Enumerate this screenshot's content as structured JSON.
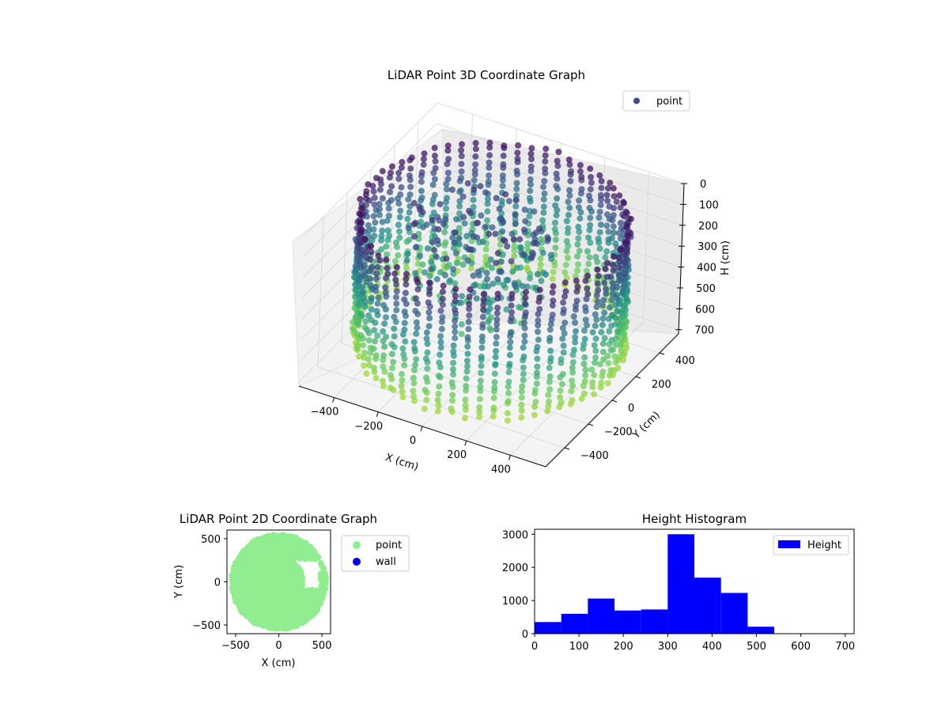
{
  "colors": {
    "viridis_top": "#440154",
    "viridis_mid": "#21918c",
    "viridis_bottom": "#bddf26",
    "point_2d": "#90ee90",
    "wall_2d": "#0000ff",
    "hist_bar": "#0000ff",
    "legend_point_3d": "#3f4a8a"
  },
  "chart_data": [
    {
      "type": "scatter",
      "projection": "3d",
      "title": "LiDAR Point 3D Coordinate Graph",
      "xlabel": "X (cm)",
      "ylabel": "Y (cm)",
      "zlabel": "H (cm)",
      "xticks": [
        "−400",
        "−200",
        "0",
        "200",
        "400"
      ],
      "yticks": [
        "400",
        "200",
        "0",
        "−200",
        "−400"
      ],
      "zticks": [
        "0",
        "100",
        "200",
        "300",
        "400",
        "500",
        "600",
        "700"
      ],
      "xlim": [
        -560,
        560
      ],
      "ylim": [
        -560,
        560
      ],
      "zlim": [
        0,
        720
      ],
      "z_inverted": true,
      "colormap": "viridis",
      "legend": {
        "entries": [
          "point"
        ],
        "position": "upper right"
      },
      "grid": true,
      "shape": "cylindrical wall of points, radius ~540 cm, height 0-700 cm, with a central cluster of points near the center"
    },
    {
      "type": "scatter",
      "title": "LiDAR Point 2D Coordinate Graph",
      "xlabel": "X (cm)",
      "ylabel": "Y (cm)",
      "xticks": [
        "−500",
        "0",
        "500"
      ],
      "yticks": [
        "500",
        "0",
        "−500"
      ],
      "xlim": [
        -600,
        600
      ],
      "ylim": [
        -600,
        600
      ],
      "series": [
        {
          "name": "point",
          "color": "#90ee90",
          "shape": "filled disk of points, radius ~540 cm, centered near (0, 0)"
        },
        {
          "name": "wall",
          "color": "#0000ff"
        }
      ],
      "legend": {
        "position": "outside right"
      },
      "grid": false
    },
    {
      "type": "bar",
      "title": "Height Histogram",
      "xlabel": "",
      "ylabel": "",
      "bin_edges": [
        0,
        60,
        120,
        180,
        240,
        300,
        360,
        420,
        480,
        540,
        600,
        660,
        720
      ],
      "values": [
        350,
        600,
        1060,
        700,
        730,
        3000,
        1690,
        1230,
        210,
        0,
        0,
        0
      ],
      "xticks": [
        "0",
        "100",
        "200",
        "300",
        "400",
        "500",
        "600",
        "700"
      ],
      "yticks": [
        "0",
        "1000",
        "2000",
        "3000"
      ],
      "xlim": [
        0,
        720
      ],
      "ylim": [
        0,
        3150
      ],
      "series": [
        {
          "name": "Height",
          "color": "#0000ff"
        }
      ],
      "legend": {
        "position": "upper right"
      },
      "grid": false
    }
  ]
}
